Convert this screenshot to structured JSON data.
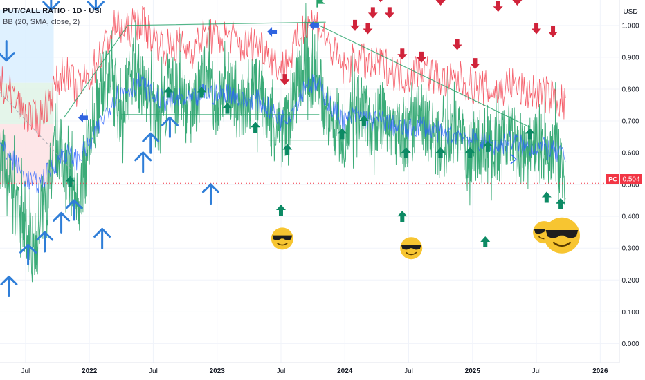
{
  "legend": {
    "title": "PUT/CALL RATIO · 1D · USI",
    "indicator": "BB (20, SMA, close, 2)"
  },
  "currency": "USD",
  "price_tag": {
    "code": "PC",
    "value": "0.504",
    "color": "#f23645"
  },
  "chart_data": {
    "type": "line",
    "y_axis": {
      "min": -0.06,
      "max": 1.08,
      "ticks": [
        1.0,
        0.9,
        0.8,
        0.7,
        0.6,
        0.5,
        0.4,
        0.3,
        0.2,
        0.1,
        0.0
      ]
    },
    "x_axis": {
      "labels": [
        "Jul",
        "2022",
        "Jul",
        "2023",
        "Jul",
        "2024",
        "Jul",
        "2025",
        "Jul",
        "2026"
      ],
      "bold": [
        "2022",
        "2023",
        "2024",
        "2025",
        "2026"
      ],
      "positions_time": [
        2021.5,
        2022.0,
        2022.5,
        2023.0,
        2023.5,
        2024.0,
        2024.5,
        2025.0,
        2025.5,
        2026.0
      ],
      "range": [
        2021.3,
        2026.15
      ]
    },
    "last_value": 0.504,
    "series": [
      {
        "kind": "close",
        "color": "#26a269",
        "samples": [
          [
            2021.3,
            0.62
          ],
          [
            2021.35,
            0.55
          ],
          [
            2021.4,
            0.48
          ],
          [
            2021.45,
            0.38
          ],
          [
            2021.5,
            0.35
          ],
          [
            2021.55,
            0.3
          ],
          [
            2021.6,
            0.33
          ],
          [
            2021.65,
            0.42
          ],
          [
            2021.7,
            0.55
          ],
          [
            2021.75,
            0.63
          ],
          [
            2021.8,
            0.58
          ],
          [
            2021.85,
            0.52
          ],
          [
            2021.9,
            0.45
          ],
          [
            2021.95,
            0.5
          ],
          [
            2022.0,
            0.62
          ],
          [
            2022.05,
            0.7
          ],
          [
            2022.1,
            0.8
          ],
          [
            2022.15,
            0.85
          ],
          [
            2022.2,
            0.78
          ],
          [
            2022.25,
            0.72
          ],
          [
            2022.3,
            0.8
          ],
          [
            2022.35,
            0.88
          ],
          [
            2022.4,
            0.82
          ],
          [
            2022.45,
            0.78
          ],
          [
            2022.5,
            0.74
          ],
          [
            2022.55,
            0.7
          ],
          [
            2022.6,
            0.76
          ],
          [
            2022.65,
            0.82
          ],
          [
            2022.7,
            0.78
          ],
          [
            2022.75,
            0.74
          ],
          [
            2022.8,
            0.72
          ],
          [
            2022.85,
            0.78
          ],
          [
            2022.9,
            0.85
          ],
          [
            2022.95,
            0.8
          ],
          [
            2023.0,
            0.75
          ],
          [
            2023.05,
            0.78
          ],
          [
            2023.1,
            0.82
          ],
          [
            2023.15,
            0.76
          ],
          [
            2023.2,
            0.72
          ],
          [
            2023.25,
            0.75
          ],
          [
            2023.3,
            0.8
          ],
          [
            2023.35,
            0.77
          ],
          [
            2023.4,
            0.72
          ],
          [
            2023.45,
            0.68
          ],
          [
            2023.5,
            0.65
          ],
          [
            2023.55,
            0.7
          ],
          [
            2023.6,
            0.78
          ],
          [
            2023.65,
            0.85
          ],
          [
            2023.7,
            0.88
          ],
          [
            2023.75,
            0.84
          ],
          [
            2023.8,
            0.8
          ],
          [
            2023.85,
            0.74
          ],
          [
            2023.9,
            0.7
          ],
          [
            2023.95,
            0.68
          ],
          [
            2024.0,
            0.66
          ],
          [
            2024.05,
            0.7
          ],
          [
            2024.1,
            0.74
          ],
          [
            2024.15,
            0.72
          ],
          [
            2024.2,
            0.68
          ],
          [
            2024.25,
            0.7
          ],
          [
            2024.3,
            0.72
          ],
          [
            2024.35,
            0.69
          ],
          [
            2024.4,
            0.66
          ],
          [
            2024.45,
            0.64
          ],
          [
            2024.5,
            0.66
          ],
          [
            2024.55,
            0.7
          ],
          [
            2024.6,
            0.72
          ],
          [
            2024.65,
            0.68
          ],
          [
            2024.7,
            0.64
          ],
          [
            2024.75,
            0.62
          ],
          [
            2024.8,
            0.64
          ],
          [
            2024.85,
            0.68
          ],
          [
            2024.9,
            0.66
          ],
          [
            2024.95,
            0.62
          ],
          [
            2025.0,
            0.6
          ],
          [
            2025.05,
            0.63
          ],
          [
            2025.1,
            0.65
          ],
          [
            2025.15,
            0.62
          ],
          [
            2025.2,
            0.6
          ],
          [
            2025.25,
            0.63
          ],
          [
            2025.3,
            0.67
          ],
          [
            2025.35,
            0.62
          ],
          [
            2025.4,
            0.57
          ],
          [
            2025.45,
            0.6
          ],
          [
            2025.5,
            0.64
          ],
          [
            2025.55,
            0.62
          ],
          [
            2025.6,
            0.58
          ],
          [
            2025.65,
            0.6
          ],
          [
            2025.7,
            0.56
          ],
          [
            2025.73,
            0.5
          ]
        ]
      },
      {
        "kind": "bb-mid",
        "color": "#2962ff",
        "samples": [
          [
            2021.3,
            0.62
          ],
          [
            2021.4,
            0.58
          ],
          [
            2021.5,
            0.52
          ],
          [
            2021.6,
            0.5
          ],
          [
            2021.7,
            0.55
          ],
          [
            2021.8,
            0.6
          ],
          [
            2021.9,
            0.58
          ],
          [
            2022.0,
            0.62
          ],
          [
            2022.1,
            0.7
          ],
          [
            2022.2,
            0.78
          ],
          [
            2022.3,
            0.8
          ],
          [
            2022.4,
            0.82
          ],
          [
            2022.5,
            0.78
          ],
          [
            2022.6,
            0.76
          ],
          [
            2022.7,
            0.77
          ],
          [
            2022.8,
            0.76
          ],
          [
            2022.9,
            0.79
          ],
          [
            2023.0,
            0.78
          ],
          [
            2023.1,
            0.79
          ],
          [
            2023.2,
            0.76
          ],
          [
            2023.3,
            0.77
          ],
          [
            2023.4,
            0.74
          ],
          [
            2023.5,
            0.7
          ],
          [
            2023.6,
            0.74
          ],
          [
            2023.7,
            0.82
          ],
          [
            2023.8,
            0.81
          ],
          [
            2023.9,
            0.74
          ],
          [
            2024.0,
            0.7
          ],
          [
            2024.1,
            0.72
          ],
          [
            2024.2,
            0.7
          ],
          [
            2024.3,
            0.7
          ],
          [
            2024.4,
            0.68
          ],
          [
            2024.5,
            0.67
          ],
          [
            2024.6,
            0.69
          ],
          [
            2024.7,
            0.67
          ],
          [
            2024.8,
            0.65
          ],
          [
            2024.9,
            0.66
          ],
          [
            2025.0,
            0.64
          ],
          [
            2025.1,
            0.63
          ],
          [
            2025.2,
            0.62
          ],
          [
            2025.3,
            0.64
          ],
          [
            2025.4,
            0.62
          ],
          [
            2025.5,
            0.62
          ],
          [
            2025.6,
            0.61
          ],
          [
            2025.7,
            0.59
          ],
          [
            2025.73,
            0.58
          ]
        ]
      },
      {
        "kind": "bb-upper",
        "color": "#f23645",
        "samples": [
          [
            2021.3,
            0.82
          ],
          [
            2021.4,
            0.78
          ],
          [
            2021.5,
            0.72
          ],
          [
            2021.6,
            0.7
          ],
          [
            2021.7,
            0.78
          ],
          [
            2021.8,
            0.86
          ],
          [
            2021.9,
            0.8
          ],
          [
            2022.0,
            0.84
          ],
          [
            2022.1,
            0.92
          ],
          [
            2022.2,
            1.0
          ],
          [
            2022.3,
            0.98
          ],
          [
            2022.4,
            1.02
          ],
          [
            2022.5,
            0.96
          ],
          [
            2022.6,
            0.93
          ],
          [
            2022.7,
            0.94
          ],
          [
            2022.8,
            0.92
          ],
          [
            2022.9,
            0.97
          ],
          [
            2023.0,
            0.96
          ],
          [
            2023.1,
            0.97
          ],
          [
            2023.2,
            0.93
          ],
          [
            2023.3,
            0.95
          ],
          [
            2023.4,
            0.92
          ],
          [
            2023.5,
            0.86
          ],
          [
            2023.6,
            0.92
          ],
          [
            2023.7,
            1.02
          ],
          [
            2023.8,
            1.0
          ],
          [
            2023.9,
            0.92
          ],
          [
            2024.0,
            0.86
          ],
          [
            2024.1,
            0.9
          ],
          [
            2024.2,
            0.87
          ],
          [
            2024.3,
            0.88
          ],
          [
            2024.4,
            0.85
          ],
          [
            2024.5,
            0.84
          ],
          [
            2024.6,
            0.87
          ],
          [
            2024.7,
            0.84
          ],
          [
            2024.8,
            0.82
          ],
          [
            2024.9,
            0.83
          ],
          [
            2025.0,
            0.81
          ],
          [
            2025.1,
            0.8
          ],
          [
            2025.2,
            0.79
          ],
          [
            2025.3,
            0.82
          ],
          [
            2025.4,
            0.79
          ],
          [
            2025.5,
            0.79
          ],
          [
            2025.6,
            0.78
          ],
          [
            2025.7,
            0.76
          ],
          [
            2025.73,
            0.75
          ]
        ]
      }
    ],
    "horizontal_lines": [
      {
        "value": 0.504,
        "color": "#f23645",
        "style": "dotted"
      }
    ],
    "trend_lines": [
      {
        "points": [
          [
            2021.3,
            0.79
          ],
          [
            2021.85,
            0.55
          ]
        ],
        "color": "#a0a3ab",
        "style": "dashed"
      },
      {
        "points": [
          [
            2021.8,
            0.71
          ],
          [
            2022.3,
            1.0
          ],
          [
            2023.85,
            1.01
          ]
        ],
        "color": "#26a269"
      },
      {
        "points": [
          [
            2022.25,
            0.72
          ],
          [
            2023.8,
            0.72
          ]
        ],
        "color": "#26a269"
      },
      {
        "points": [
          [
            2023.8,
            1.0
          ],
          [
            2025.45,
            0.68
          ]
        ],
        "color": "#26a269"
      },
      {
        "points": [
          [
            2023.4,
            0.64
          ],
          [
            2025.3,
            0.64
          ]
        ],
        "color": "#26a269"
      }
    ],
    "shaded_boxes": [
      {
        "x": [
          2021.3,
          2021.72
        ],
        "y": [
          0.82,
          1.05
        ],
        "color": "#d9efff"
      },
      {
        "x": [
          2021.3,
          2021.72
        ],
        "y": [
          0.69,
          0.82
        ],
        "color": "#dff3e6"
      },
      {
        "x": [
          2021.3,
          2021.72
        ],
        "y": [
          0.5,
          0.69
        ],
        "color": "#fde2e4"
      }
    ],
    "markers": [
      {
        "type": "arrow-up",
        "color": "#2f7ed8",
        "points": [
          [
            2021.37,
            0.18
          ],
          [
            2021.52,
            0.28
          ],
          [
            2021.65,
            0.32
          ],
          [
            2021.78,
            0.38
          ],
          [
            2021.88,
            0.42
          ],
          [
            2022.1,
            0.33
          ],
          [
            2022.42,
            0.57
          ],
          [
            2022.48,
            0.63
          ],
          [
            2022.63,
            0.68
          ],
          [
            2022.95,
            0.47
          ]
        ]
      },
      {
        "type": "arrow-down",
        "color": "#2f7ed8",
        "points": [
          [
            2021.35,
            0.92
          ],
          [
            2021.7,
            1.08
          ],
          [
            2022.05,
            1.08
          ]
        ]
      },
      {
        "type": "arrow-up-small",
        "color": "#0c8a64",
        "points": [
          [
            2021.85,
            0.51
          ],
          [
            2022.62,
            0.79
          ],
          [
            2022.88,
            0.79
          ],
          [
            2023.08,
            0.74
          ],
          [
            2023.3,
            0.68
          ],
          [
            2023.55,
            0.61
          ],
          [
            2023.98,
            0.66
          ],
          [
            2024.15,
            0.7
          ],
          [
            2024.48,
            0.6
          ],
          [
            2024.75,
            0.6
          ],
          [
            2024.98,
            0.6
          ],
          [
            2025.12,
            0.62
          ],
          [
            2025.45,
            0.66
          ],
          [
            2025.58,
            0.46
          ],
          [
            2025.69,
            0.44
          ],
          [
            2023.5,
            0.42
          ],
          [
            2024.45,
            0.4
          ],
          [
            2025.1,
            0.32
          ]
        ]
      },
      {
        "type": "arrow-down-red",
        "color": "#d0233a",
        "points": [
          [
            2023.53,
            0.83
          ],
          [
            2024.08,
            1.0
          ],
          [
            2024.18,
            0.99
          ],
          [
            2024.22,
            1.04
          ],
          [
            2024.28,
            1.09
          ],
          [
            2024.35,
            1.04
          ],
          [
            2024.45,
            0.91
          ],
          [
            2024.6,
            0.9
          ],
          [
            2024.75,
            1.08
          ],
          [
            2024.88,
            0.94
          ],
          [
            2025.02,
            0.88
          ],
          [
            2025.2,
            1.06
          ],
          [
            2025.35,
            1.08
          ],
          [
            2025.5,
            0.99
          ],
          [
            2025.63,
            0.98
          ]
        ]
      },
      {
        "type": "flag-blue",
        "color": "#2f64e0",
        "points": [
          [
            2021.95,
            0.71
          ],
          [
            2023.43,
            0.98
          ],
          [
            2023.76,
            1.0
          ]
        ]
      },
      {
        "type": "flag-green",
        "color": "#26a269",
        "points": [
          [
            2023.8,
            1.07
          ]
        ]
      },
      {
        "type": "chevron-right",
        "color": "#2962ff",
        "points": [
          [
            2025.32,
            0.58
          ]
        ]
      }
    ],
    "emojis": [
      [
        2023.51,
        0.33
      ],
      [
        2024.52,
        0.3
      ],
      [
        2025.56,
        0.35
      ],
      [
        2025.7,
        0.34
      ]
    ]
  }
}
